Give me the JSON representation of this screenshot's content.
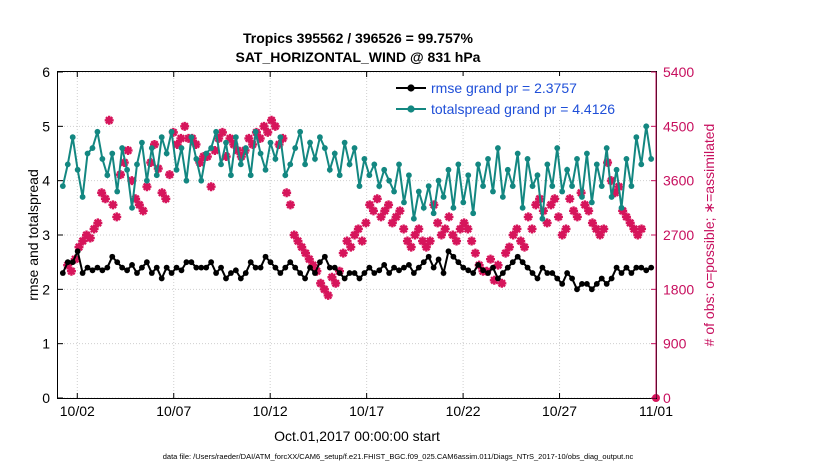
{
  "chart_data": {
    "type": "line",
    "title_line1": "Tropics 395562 / 396526 = 99.757%",
    "title_line2": "SAT_HORIZONTAL_WIND @ 831 hPa",
    "xlabel": "Oct.01,2017 00:00:00 start",
    "ylabel_left": "rmse and totalspread",
    "ylabel_right": "# of obs: o=possible; ∗=assimilated",
    "footer": "data file: /Users/raeder/DAI/ATM_forcXX/CAM6_setup/f.e21.FHIST_BGC.f09_025.CAM6assim.011/Diags_NTrS_2017-10/obs_diag_output.nc",
    "xlim": [
      0.5,
      31.5
    ],
    "ylim_left": [
      0,
      6
    ],
    "ylim_right": [
      0,
      5400
    ],
    "x_ticks": [
      1.5,
      6.5,
      11.5,
      16.5,
      21.5,
      26.5,
      31.5
    ],
    "x_tick_labels": [
      "10/02",
      "10/07",
      "10/12",
      "10/17",
      "10/22",
      "10/27",
      "11/01"
    ],
    "y_ticks_left": [
      0,
      1,
      2,
      3,
      4,
      5,
      6
    ],
    "y_tick_labels_left": [
      "0",
      "1",
      "2",
      "3",
      "4",
      "5",
      "6"
    ],
    "y_ticks_right": [
      0,
      900,
      1800,
      2700,
      3600,
      4500,
      5400
    ],
    "y_tick_labels_right": [
      "0",
      "900",
      "1800",
      "2700",
      "3600",
      "4500",
      "5400"
    ],
    "colors": {
      "rmse": "#000000",
      "spread": "#138781",
      "obs": "#d6155b",
      "right_axis": "#c70f5e",
      "legend_text": "#1f4fd8"
    },
    "series": [
      {
        "name": "rmse grand pr = 2.3757",
        "axis": "left",
        "values": [
          2.3,
          2.5,
          2.5,
          2.7,
          2.3,
          2.4,
          2.35,
          2.4,
          2.35,
          2.4,
          2.6,
          2.5,
          2.4,
          2.35,
          2.45,
          2.3,
          2.4,
          2.5,
          2.3,
          2.4,
          2.2,
          2.4,
          2.3,
          2.4,
          2.35,
          2.5,
          2.5,
          2.4,
          2.4,
          2.4,
          2.5,
          2.3,
          2.4,
          2.2,
          2.3,
          2.35,
          2.2,
          2.3,
          2.5,
          2.4,
          2.4,
          2.6,
          2.5,
          2.4,
          2.3,
          2.4,
          2.5,
          2.4,
          2.3,
          2.2,
          2.4,
          2.3,
          2.5,
          2.6,
          2.4,
          2.4,
          2.3,
          2.2,
          2.3,
          2.3,
          2.2,
          2.3,
          2.4,
          2.3,
          2.35,
          2.45,
          2.3,
          2.4,
          2.35,
          2.4,
          2.45,
          2.3,
          2.4,
          2.5,
          2.6,
          2.4,
          2.55,
          2.3,
          2.7,
          2.6,
          2.5,
          2.4,
          2.35,
          2.3,
          2.45,
          2.35,
          2.3,
          2.4,
          2.2,
          2.3,
          2.4,
          2.5,
          2.6,
          2.5,
          2.4,
          2.3,
          2.2,
          2.4,
          2.3,
          2.3,
          2.2,
          2.1,
          2.3,
          2.2,
          2.0,
          2.1,
          2.1,
          2.0,
          2.1,
          2.2,
          2.1,
          2.2,
          2.4,
          2.3,
          2.4,
          2.3,
          2.4,
          2.4,
          2.35,
          2.4
        ]
      },
      {
        "name": "totalspread grand pr = 4.4126",
        "axis": "left",
        "values": [
          3.9,
          4.3,
          4.8,
          4.2,
          3.7,
          4.5,
          4.6,
          4.9,
          4.4,
          4.1,
          4.5,
          3.8,
          4.6,
          4.2,
          3.5,
          4.3,
          4.7,
          4.0,
          4.6,
          4.1,
          4.8,
          4.5,
          4.9,
          4.2,
          4.6,
          4.0,
          4.8,
          4.4,
          4.0,
          4.5,
          4.6,
          4.9,
          4.3,
          4.7,
          4.1,
          4.8,
          4.3,
          4.6,
          4.1,
          4.9,
          4.5,
          4.2,
          4.7,
          4.4,
          4.8,
          4.1,
          4.3,
          4.6,
          4.9,
          4.3,
          4.7,
          4.4,
          4.8,
          4.6,
          4.2,
          4.5,
          4.1,
          4.7,
          4.3,
          4.6,
          3.9,
          4.4,
          4.1,
          4.3,
          3.9,
          4.2,
          4.0,
          3.8,
          4.3,
          3.6,
          4.1,
          3.3,
          3.8,
          3.5,
          3.9,
          3.4,
          4.0,
          3.7,
          4.2,
          3.5,
          4.3,
          3.6,
          4.1,
          3.4,
          4.3,
          3.9,
          4.4,
          3.8,
          4.6,
          3.7,
          4.2,
          3.9,
          4.5,
          3.5,
          4.4,
          3.9,
          4.1,
          3.3,
          4.3,
          3.9,
          4.6,
          3.8,
          4.2,
          3.9,
          4.4,
          3.7,
          4.5,
          3.6,
          4.3,
          3.9,
          4.6,
          3.7,
          4.2,
          3.5,
          4.4,
          3.9,
          4.8,
          4.3,
          5.0,
          4.4
        ]
      },
      {
        "name": "observations assimilated",
        "axis": "right",
        "values": [
          2200,
          2100,
          2300,
          2500,
          2600,
          2700,
          2650,
          2800,
          2900,
          3400,
          3300,
          4600,
          3200,
          3000,
          3700,
          3900,
          4100,
          3600,
          3300,
          3200,
          3100,
          3500,
          3900,
          4200,
          3800,
          3400,
          3300,
          3700,
          4400,
          4200,
          4300,
          4500,
          4300,
          4300,
          4200,
          3900,
          4000,
          4000,
          3500,
          4100,
          4300,
          4400,
          4000,
          4300,
          4200,
          4100,
          4000,
          4100,
          4300,
          4200,
          4400,
          4300,
          4500,
          4400,
          4600,
          4500,
          4200,
          4300,
          3400,
          3200,
          2700,
          2600,
          2500,
          2400,
          2300,
          2200,
          2100,
          1900,
          1800,
          1700,
          2000,
          1900,
          2100,
          2400,
          2600,
          2500,
          2700,
          2800,
          2600,
          2900,
          3200,
          3100,
          3300,
          3000,
          3100,
          3200,
          2900,
          3000,
          3100,
          2800,
          2600,
          2500,
          2700,
          2800,
          2600,
          2500,
          2600,
          3200,
          2900,
          2700,
          2800,
          3000,
          2700,
          2600,
          2800,
          2900,
          2800,
          2600,
          2400,
          2200,
          2100,
          2100,
          2300,
          1950,
          2200,
          1900,
          2400,
          2500,
          2700,
          2800,
          2600,
          2500,
          3000,
          2800,
          3200,
          3300,
          3100,
          2900,
          3200,
          3300,
          3000,
          2700,
          2800,
          3300,
          3100,
          3000,
          3400,
          3200,
          3100,
          2900,
          2800,
          2700,
          2800,
          3900,
          3600,
          3400,
          3500,
          3100,
          3000,
          2900,
          2800,
          2700,
          2800
        ]
      }
    ],
    "x_obs_start": 1.0,
    "x_obs_end": 30.75,
    "x_line_start": 0.75,
    "x_line_end": 31.25,
    "obs_possible_final": {
      "x": 31.5,
      "value": 0
    }
  }
}
